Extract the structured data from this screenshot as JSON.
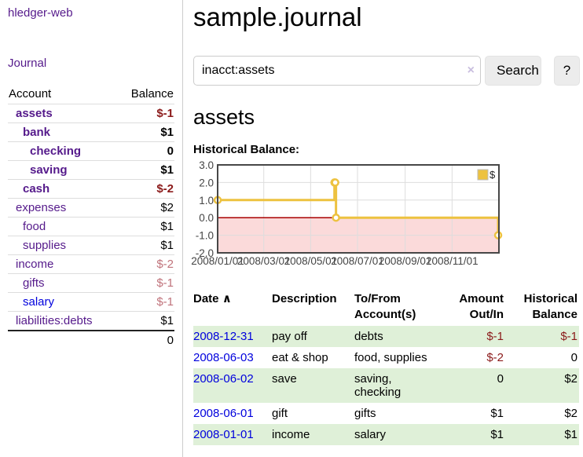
{
  "sidebar": {
    "brand": "hledger-web",
    "nav_journal": "Journal",
    "accounts_table": {
      "headers": [
        "Account",
        "Balance"
      ],
      "rows": [
        {
          "account": "assets",
          "balance": "$-1",
          "indent": 0,
          "bold": true,
          "balance_style": "neg-strong",
          "link_state": "visited"
        },
        {
          "account": "bank",
          "balance": "$1",
          "indent": 1,
          "bold": true,
          "balance_style": "normal",
          "link_state": "visited"
        },
        {
          "account": "checking",
          "balance": "0",
          "indent": 2,
          "bold": true,
          "balance_style": "normal",
          "link_state": "visited"
        },
        {
          "account": "saving",
          "balance": "$1",
          "indent": 2,
          "bold": true,
          "balance_style": "normal",
          "link_state": "visited"
        },
        {
          "account": "cash",
          "balance": "$-2",
          "indent": 1,
          "bold": true,
          "balance_style": "neg-strong",
          "link_state": "visited"
        },
        {
          "account": "expenses",
          "balance": "$2",
          "indent": 0,
          "bold": false,
          "balance_style": "normal",
          "link_state": "visited"
        },
        {
          "account": "food",
          "balance": "$1",
          "indent": 1,
          "bold": false,
          "balance_style": "normal",
          "link_state": "visited"
        },
        {
          "account": "supplies",
          "balance": "$1",
          "indent": 1,
          "bold": false,
          "balance_style": "normal",
          "link_state": "visited"
        },
        {
          "account": "income",
          "balance": "$-2",
          "indent": 0,
          "bold": false,
          "balance_style": "neg-soft",
          "link_state": "visited"
        },
        {
          "account": "gifts",
          "balance": "$-1",
          "indent": 1,
          "bold": false,
          "balance_style": "neg-soft",
          "link_state": "visited"
        },
        {
          "account": "salary",
          "balance": "$-1",
          "indent": 1,
          "bold": false,
          "balance_style": "neg-soft",
          "link_state": "unvisited"
        },
        {
          "account": "liabilities:debts",
          "balance": "$1",
          "indent": 0,
          "bold": false,
          "balance_style": "normal",
          "link_state": "visited"
        }
      ],
      "total": "0"
    }
  },
  "main": {
    "title": "sample.journal",
    "search": {
      "value": "inacct:assets",
      "clear_icon": "×",
      "button_label": "Search",
      "help_label": "?"
    },
    "account_heading": "assets",
    "chart_label": "Historical Balance:"
  },
  "chart_data": {
    "type": "line",
    "step": true,
    "title": "Historical Balance",
    "ylim": [
      -2,
      3
    ],
    "ytick_labels": [
      "3.0",
      "2.0",
      "1.0",
      "0.0",
      "-1.0",
      "-2.0"
    ],
    "yticks": [
      3,
      2,
      1,
      0,
      -1,
      -2
    ],
    "xrange": [
      "2008-01-01",
      "2009-01-01"
    ],
    "xticks": [
      {
        "date": "2008-01-01",
        "label": "2008/01/01"
      },
      {
        "date": "2008-03-01",
        "label": "2008/03/01"
      },
      {
        "date": "2008-05-01",
        "label": "2008/05/01"
      },
      {
        "date": "2008-07-01",
        "label": "2008/07/01"
      },
      {
        "date": "2008-09-01",
        "label": "2008/09/01"
      },
      {
        "date": "2008-11-01",
        "label": "2008/11/01"
      }
    ],
    "series": [
      {
        "name": "$",
        "color": "#edc240",
        "points": [
          [
            "2008-01-01",
            1
          ],
          [
            "2008-06-01",
            2
          ],
          [
            "2008-06-02",
            2
          ],
          [
            "2008-06-03",
            0
          ],
          [
            "2008-12-31",
            -1
          ]
        ]
      }
    ],
    "legend_position": "top-right",
    "grid": true,
    "colors": {
      "zero_line": "#aa0000",
      "below_zero_fill": "#fbdada",
      "grid_line": "#dddddd",
      "plot_border": "#474747",
      "marker_fill": "#ffffff",
      "tick_text": "#444444"
    }
  },
  "register": {
    "headers": {
      "date": "Date",
      "sort_icon": "∧",
      "description": "Description",
      "accounts": "To/From Account(s)",
      "amount": "Amount Out/In",
      "balance": "Historical Balance"
    },
    "rows": [
      {
        "date": "2008-12-31",
        "description": "pay off",
        "accounts": "debts",
        "amount": "$-1",
        "amount_neg": true,
        "balance": "$-1",
        "balance_neg": true
      },
      {
        "date": "2008-06-03",
        "description": "eat & shop",
        "accounts": "food, supplies",
        "amount": "$-2",
        "amount_neg": true,
        "balance": "0",
        "balance_neg": false
      },
      {
        "date": "2008-06-02",
        "description": "save",
        "accounts": "saving, checking",
        "amount": "0",
        "amount_neg": false,
        "balance": "$2",
        "balance_neg": false
      },
      {
        "date": "2008-06-01",
        "description": "gift",
        "accounts": "gifts",
        "amount": "$1",
        "amount_neg": false,
        "balance": "$2",
        "balance_neg": false
      },
      {
        "date": "2008-01-01",
        "description": "income",
        "accounts": "salary",
        "amount": "$1",
        "amount_neg": false,
        "balance": "$1",
        "balance_neg": false
      }
    ]
  }
}
